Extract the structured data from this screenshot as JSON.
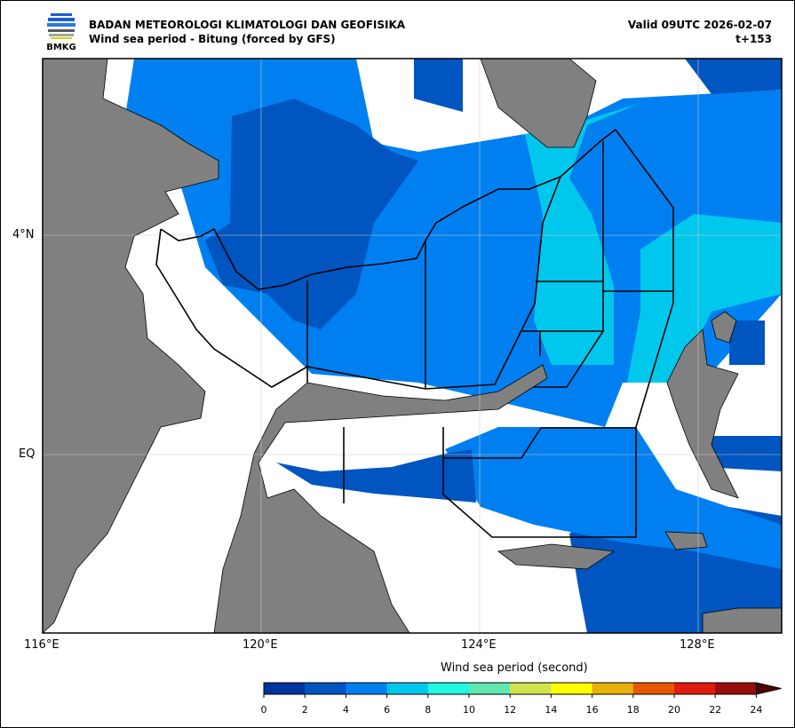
{
  "header": {
    "org": "BADAN METEOROLOGI KLIMATOLOGI DAN GEOFISIKA",
    "title": "Wind sea period - Bitung (forced by GFS)",
    "valid": "Valid 09UTC 2026-02-07",
    "lead": "t+153",
    "logo_text": "BMKG"
  },
  "axes": {
    "x_ticks": [
      "116°E",
      "120°E",
      "124°E",
      "128°E"
    ],
    "y_ticks": [
      "4°N",
      "EQ"
    ]
  },
  "colorbar": {
    "title": "Wind sea period (second)",
    "labels": [
      "0",
      "2",
      "4",
      "6",
      "8",
      "10",
      "12",
      "14",
      "16",
      "18",
      "20",
      "22",
      "24"
    ],
    "colors": [
      "#0033a0",
      "#0055c0",
      "#0080f0",
      "#00c8ec",
      "#20f8e0",
      "#60e8b0",
      "#d0e450",
      "#ffff00",
      "#e8b008",
      "#e85800",
      "#e01c10",
      "#980c0c",
      "#500000"
    ]
  },
  "colors": {
    "land": "#808080",
    "deep": "#0055c0",
    "mid": "#0080f0",
    "light": "#00c8ec"
  }
}
